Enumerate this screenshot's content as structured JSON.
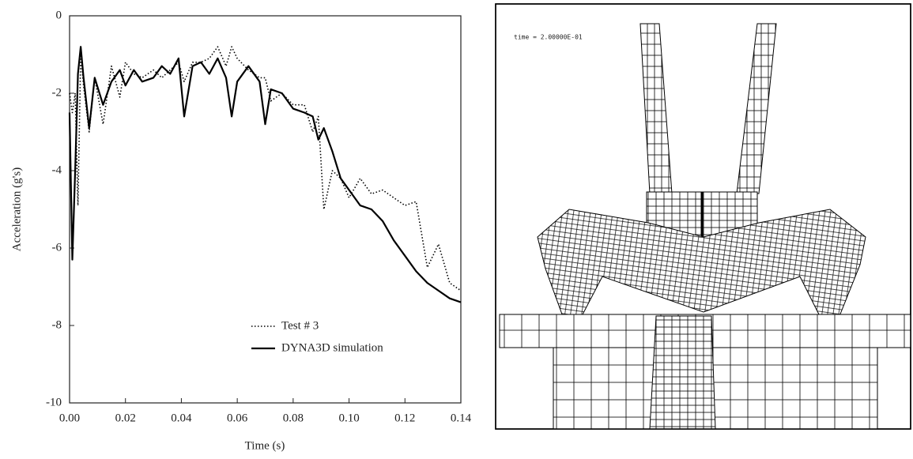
{
  "chart_data": {
    "type": "line",
    "x_label": "Time (s)",
    "y_label": "Acceleration (g's)",
    "x": [
      0,
      0.001,
      0.002,
      0.003,
      0.004,
      0.005,
      0.007,
      0.009,
      0.012,
      0.015,
      0.018,
      0.02,
      0.023,
      0.026,
      0.03,
      0.033,
      0.036,
      0.039,
      0.041,
      0.044,
      0.047,
      0.05,
      0.053,
      0.056,
      0.058,
      0.06,
      0.064,
      0.068,
      0.07,
      0.072,
      0.076,
      0.08,
      0.084,
      0.087,
      0.089,
      0.091,
      0.094,
      0.097,
      0.1,
      0.104,
      0.108,
      0.112,
      0.116,
      0.12,
      0.124,
      0.128,
      0.132,
      0.136,
      0.14
    ],
    "series": [
      {
        "name": "Test # 3",
        "color": "#000000",
        "style": "dotted",
        "values": [
          -2.0,
          -2.5,
          -2.0,
          -4.9,
          -1.0,
          -1.8,
          -3.0,
          -1.6,
          -2.8,
          -1.3,
          -2.1,
          -1.2,
          -1.5,
          -1.6,
          -1.4,
          -1.6,
          -1.4,
          -1.2,
          -1.7,
          -1.2,
          -1.2,
          -1.1,
          -0.8,
          -1.3,
          -0.8,
          -1.1,
          -1.4,
          -1.6,
          -1.6,
          -2.2,
          -2.0,
          -2.3,
          -2.3,
          -3.0,
          -2.6,
          -5.0,
          -4.0,
          -4.2,
          -4.7,
          -4.2,
          -4.6,
          -4.5,
          -4.7,
          -4.9,
          -4.8,
          -6.5,
          -5.9,
          -6.9,
          -7.1
        ]
      },
      {
        "name": "DYNA3D simulation",
        "color": "#000000",
        "style": "solid",
        "values": [
          -2.5,
          -6.3,
          -4.0,
          -1.5,
          -0.8,
          -1.6,
          -2.9,
          -1.6,
          -2.3,
          -1.7,
          -1.4,
          -1.8,
          -1.4,
          -1.7,
          -1.6,
          -1.3,
          -1.5,
          -1.1,
          -2.6,
          -1.3,
          -1.2,
          -1.5,
          -1.1,
          -1.6,
          -2.6,
          -1.7,
          -1.3,
          -1.7,
          -2.8,
          -1.9,
          -2.0,
          -2.4,
          -2.5,
          -2.6,
          -3.2,
          -2.9,
          -3.5,
          -4.2,
          -4.5,
          -4.9,
          -5.0,
          -5.3,
          -5.8,
          -6.2,
          -6.6,
          -6.9,
          -7.1,
          -7.3,
          -7.4
        ]
      }
    ],
    "xlim": [
      0,
      0.14
    ],
    "xticks": [
      {
        "value": 0,
        "label": "0.00"
      },
      0.02,
      0.04,
      0.06,
      0.08,
      {
        "value": 0.1,
        "label": "0.10"
      },
      0.12,
      0.14
    ],
    "ylim": [
      -10,
      0
    ],
    "yticks": [
      -10,
      -8,
      -6,
      -4,
      -2,
      0
    ],
    "grid": false,
    "legend": "lower right"
  },
  "figure": {
    "time_label": "time =  2.00000E-01"
  }
}
